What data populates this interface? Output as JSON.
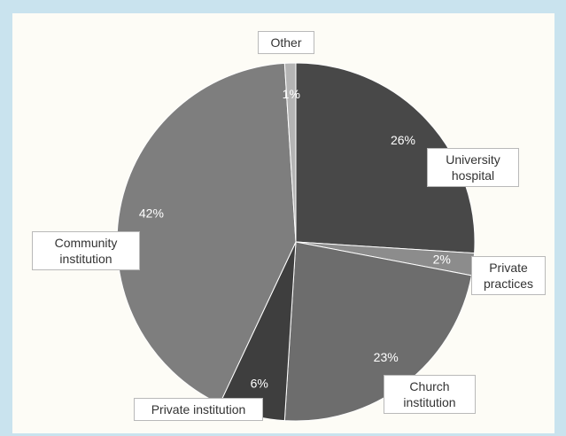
{
  "chart_data": {
    "type": "pie",
    "title": "",
    "start_angle_deg": 0,
    "direction": "clockwise",
    "slices": [
      {
        "name": "University hospital",
        "value": 26,
        "label": "26%",
        "color": "#484848"
      },
      {
        "name": "Private practices",
        "value": 2,
        "label": "2%",
        "color": "#8c8c8c"
      },
      {
        "name": "Church institution",
        "value": 23,
        "label": "23%",
        "color": "#6d6d6d"
      },
      {
        "name": "Private institution",
        "value": 6,
        "label": "6%",
        "color": "#3e3e3e"
      },
      {
        "name": "Community institution",
        "value": 42,
        "label": "42%",
        "color": "#7e7e7e"
      },
      {
        "name": "Other",
        "value": 1,
        "label": "1%",
        "color": "#b4b4b4"
      }
    ],
    "callouts": {
      "university_hospital": [
        "University",
        "hospital"
      ],
      "private_practices": [
        "Private",
        "practices"
      ],
      "church_institution": [
        "Church",
        "institution"
      ],
      "private_institution": [
        "Private institution"
      ],
      "community_institution": [
        "Community",
        "institution"
      ],
      "other": [
        "Other"
      ]
    }
  }
}
